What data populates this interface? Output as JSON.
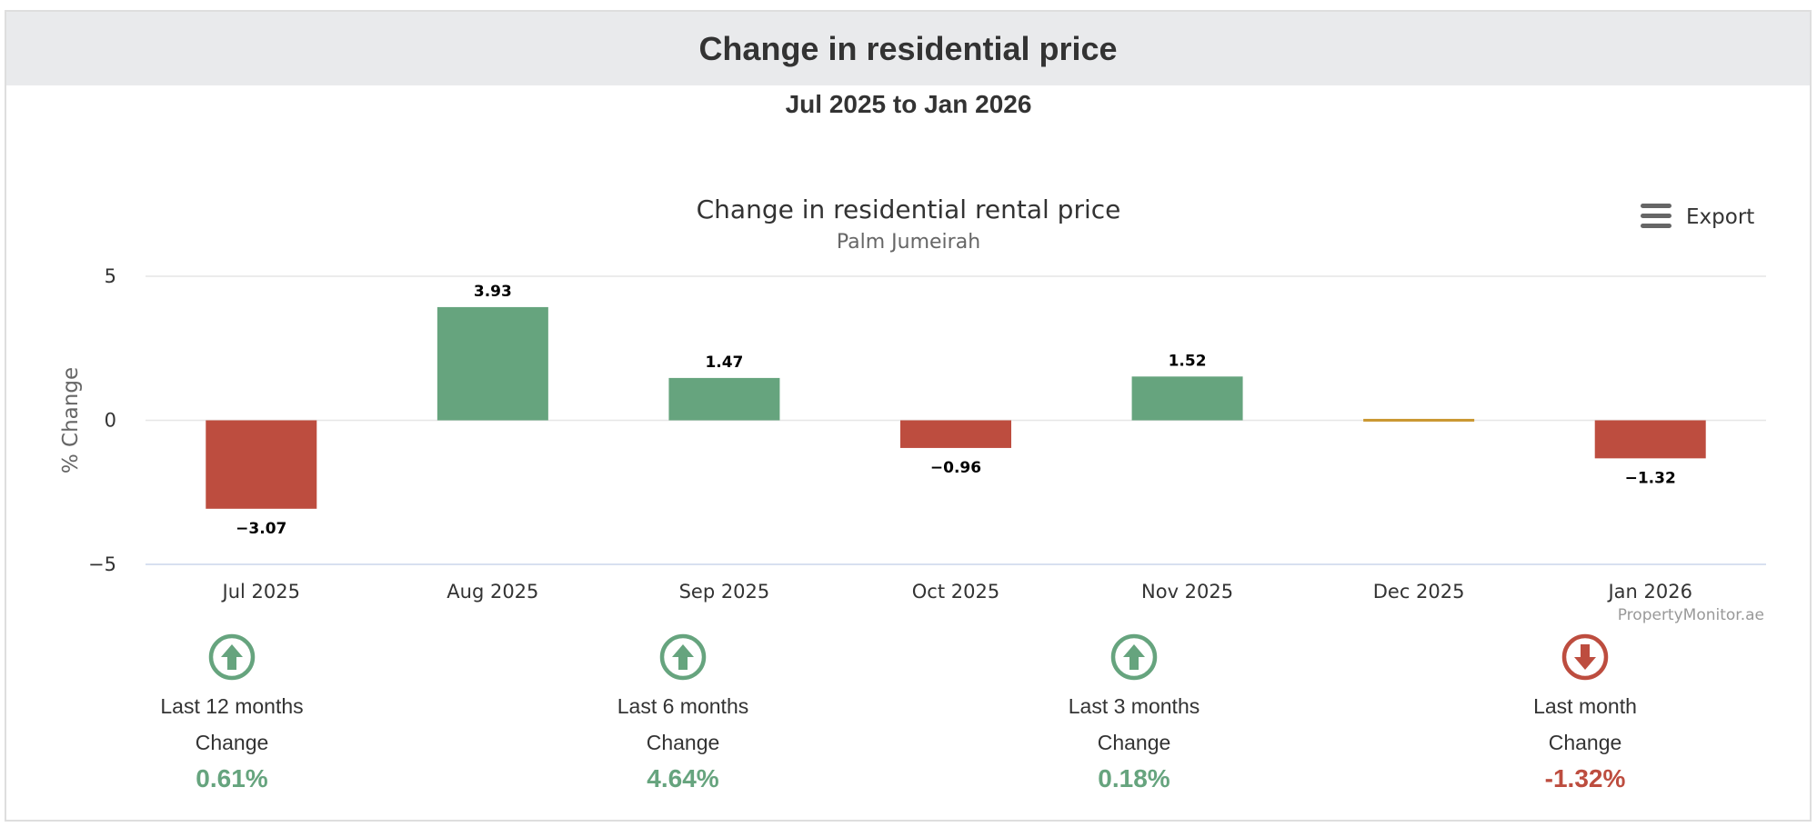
{
  "header": {
    "title": "Change in residential price",
    "period": "Jul 2025 to Jan 2026"
  },
  "export": {
    "label": "Export"
  },
  "chart_data": {
    "type": "bar",
    "title": "Change in residential rental price",
    "subtitle": "Palm Jumeirah",
    "xlabel": "",
    "ylabel": "% Change",
    "ylim": [
      -5,
      5
    ],
    "yticks": [
      5,
      0,
      -5
    ],
    "ytick_labels": [
      "5",
      "0",
      "−5"
    ],
    "grid": true,
    "categories": [
      "Jul 2025",
      "Aug 2025",
      "Sep 2025",
      "Oct 2025",
      "Nov 2025",
      "Dec 2025",
      "Jan 2026"
    ],
    "values": [
      -3.07,
      3.93,
      1.47,
      -0.96,
      1.52,
      0.05,
      -1.32
    ],
    "data_labels": [
      "−3.07",
      "3.93",
      "1.47",
      "−0.96",
      "1.52",
      "",
      "−1.32"
    ],
    "colors": {
      "positive": "#66a47e",
      "negative": "#bd4d3f",
      "neutral": "#c9962e"
    },
    "credit": "PropertyMonitor.ae"
  },
  "summary": [
    {
      "period": "Last 12 months",
      "change_label": "Change",
      "value": "0.61%",
      "direction": "up"
    },
    {
      "period": "Last 6 months",
      "change_label": "Change",
      "value": "4.64%",
      "direction": "up"
    },
    {
      "period": "Last 3 months",
      "change_label": "Change",
      "value": "0.18%",
      "direction": "up"
    },
    {
      "period": "Last month",
      "change_label": "Change",
      "value": "-1.32%",
      "direction": "down"
    }
  ],
  "icons": {
    "up": "arrow-up-circle-icon",
    "down": "arrow-down-circle-icon",
    "menu": "menu-icon"
  },
  "status_colors": {
    "up": "#66a47e",
    "down": "#bd4d3f"
  }
}
